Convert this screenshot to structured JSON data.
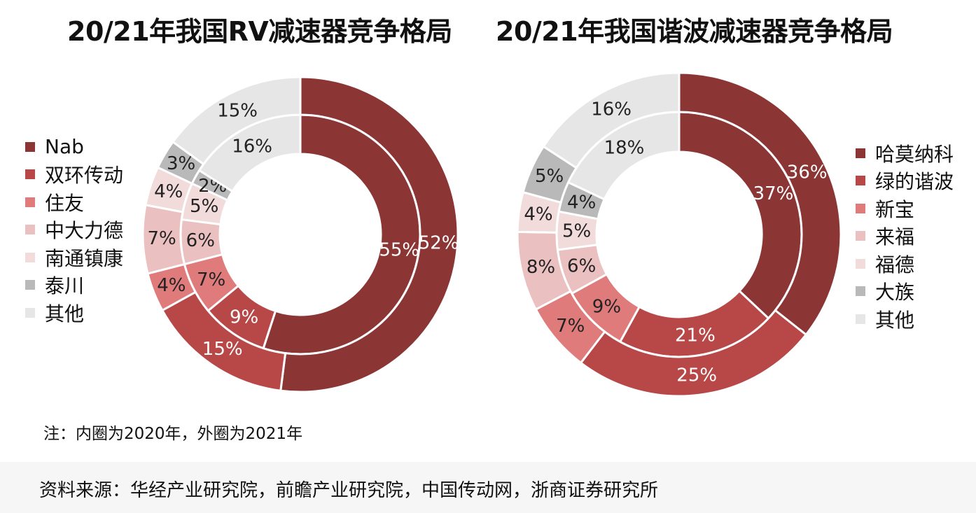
{
  "chart_data": [
    {
      "type": "pie",
      "variant": "double-donut",
      "title": "20/21年我国RV减速器竞争格局",
      "categories": [
        "Nab",
        "双环传动",
        "住友",
        "中大力德",
        "南通镇康",
        "泰川",
        "其他"
      ],
      "colors": [
        "#8b3535",
        "#b84848",
        "#e07b7b",
        "#ebc0c0",
        "#f2dbdb",
        "#b9b9b9",
        "#e6e6e6"
      ],
      "series": [
        {
          "name": "2020年",
          "ring": "inner",
          "values": [
            55,
            9,
            7,
            6,
            5,
            2,
            16
          ],
          "labels": [
            "55%",
            "9%",
            "7%",
            "6%",
            "5%",
            "2%",
            "16%"
          ]
        },
        {
          "name": "2021年",
          "ring": "outer",
          "values": [
            52,
            15,
            4,
            7,
            4,
            3,
            15
          ],
          "labels": [
            "52%",
            "15%",
            "4%",
            "7%",
            "4%",
            "3%",
            "15%"
          ]
        }
      ],
      "legend_position": "left"
    },
    {
      "type": "pie",
      "variant": "double-donut",
      "title": "20/21年我国谐波减速器竞争格局",
      "categories": [
        "哈莫纳科",
        "绿的谐波",
        "新宝",
        "来福",
        "福德",
        "大族",
        "其他"
      ],
      "colors": [
        "#8b3535",
        "#b84848",
        "#e07b7b",
        "#ebc0c0",
        "#f2dbdb",
        "#b9b9b9",
        "#e6e6e6"
      ],
      "series": [
        {
          "name": "2020年",
          "ring": "inner",
          "values": [
            37,
            21,
            9,
            6,
            5,
            4,
            18
          ],
          "labels": [
            "37%",
            "21%",
            "9%",
            "6%",
            "5%",
            "4%",
            "18%"
          ]
        },
        {
          "name": "2021年",
          "ring": "outer",
          "values": [
            36,
            25,
            7,
            8,
            4,
            5,
            16
          ],
          "labels": [
            "36%",
            "25%",
            "7%",
            "8%",
            "4%",
            "5%",
            "16%"
          ]
        }
      ],
      "legend_position": "right"
    }
  ],
  "legend_left": {
    "items": [
      {
        "label": "Nab",
        "color": "#8b3535"
      },
      {
        "label": "双环传动",
        "color": "#b84848"
      },
      {
        "label": "住友",
        "color": "#e07b7b"
      },
      {
        "label": "中大力德",
        "color": "#ebc0c0"
      },
      {
        "label": "南通镇康",
        "color": "#f2dbdb"
      },
      {
        "label": "泰川",
        "color": "#b9b9b9"
      },
      {
        "label": "其他",
        "color": "#e6e6e6"
      }
    ]
  },
  "legend_right": {
    "items": [
      {
        "label": "哈莫纳科",
        "color": "#8b3535"
      },
      {
        "label": "绿的谐波",
        "color": "#b84848"
      },
      {
        "label": "新宝",
        "color": "#e07b7b"
      },
      {
        "label": "来福",
        "color": "#ebc0c0"
      },
      {
        "label": "福德",
        "color": "#f2dbdb"
      },
      {
        "label": "大族",
        "color": "#b9b9b9"
      },
      {
        "label": "其他",
        "color": "#e6e6e6"
      }
    ]
  },
  "note": "注：内圈为2020年，外圈为2021年",
  "source": "资料来源：华经产业研究院，前瞻产业研究院，中国传动网，浙商证券研究所"
}
